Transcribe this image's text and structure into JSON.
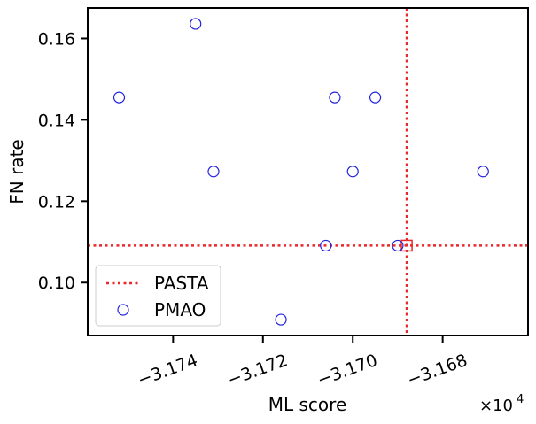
{
  "chart_data": {
    "type": "scatter",
    "xlabel": "ML score",
    "ylabel": "FN rate",
    "x_multiplier_label": "×10",
    "x_multiplier_exp": "4",
    "xlim": [
      -3.1759,
      -3.1661
    ],
    "ylim": [
      0.087,
      0.1675
    ],
    "xticks": [
      -3.174,
      -3.172,
      -3.17,
      -3.168
    ],
    "xtick_labels": [
      "−3.174",
      "−3.172",
      "−3.170",
      "−3.168"
    ],
    "yticks": [
      0.1,
      0.12,
      0.14,
      0.16
    ],
    "ytick_labels": [
      "0.10",
      "0.12",
      "0.14",
      "0.16"
    ],
    "grid": false,
    "legend_position": "lower-left",
    "series": [
      {
        "name": "PASTA",
        "kind": "reference-lines",
        "color": "#e8282b",
        "x": -3.1688,
        "y": 0.1091
      },
      {
        "name": "PMAO",
        "kind": "points",
        "color": "#2222dd",
        "x": [
          -3.1752,
          -3.1735,
          -3.1731,
          -3.1716,
          -3.1706,
          -3.1704,
          -3.17,
          -3.1695,
          -3.169,
          -3.1671
        ],
        "y": [
          0.1455,
          0.1636,
          0.1273,
          0.0909,
          0.1091,
          0.1455,
          0.1273,
          0.1455,
          0.1091,
          0.1273
        ]
      }
    ]
  }
}
